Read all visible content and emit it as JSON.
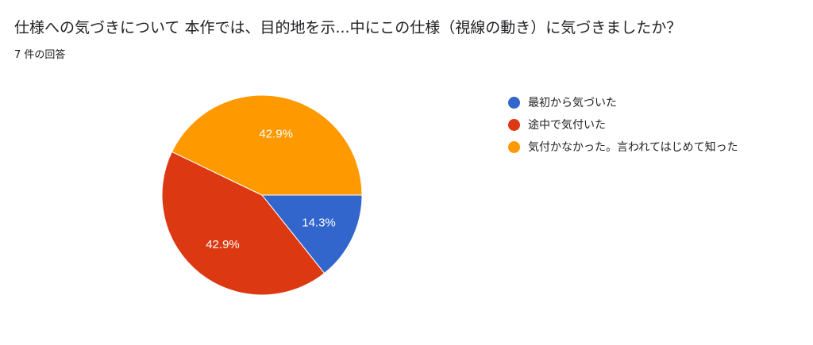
{
  "title": "仕様への気づきについて  本作では、目的地を示...中にこの仕様（視線の動き）に気づきましたか？",
  "subtitle": "7 件の回答",
  "chart_data": {
    "type": "pie",
    "slices": [
      {
        "label": "最初から気づいた",
        "value": 14.3,
        "value_label": "14.3%",
        "color": "#3366cc"
      },
      {
        "label": "途中で気付いた",
        "value": 42.9,
        "value_label": "42.9%",
        "color": "#dc3912"
      },
      {
        "label": "気付かなかった。言われてはじめて知った",
        "value": 42.9,
        "value_label": "42.9%",
        "color": "#ff9900"
      }
    ],
    "start_angle_deg": 90,
    "direction": "clockwise",
    "legend_position": "right"
  }
}
